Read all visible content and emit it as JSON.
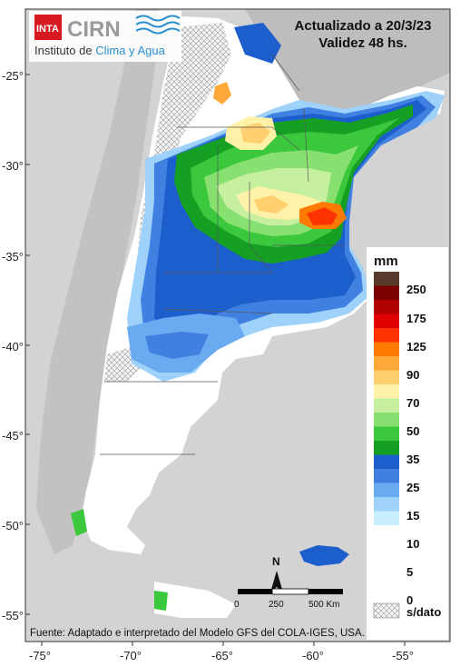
{
  "header": {
    "logo_inta": "INTA",
    "logo_cirn": "CIRN",
    "institute_prefix": "Instituto de ",
    "institute_highlight": "Clima y Agua",
    "updated": "Actualizado a 20/3/23",
    "validity": "Validez 48 hs."
  },
  "legend": {
    "unit": "mm",
    "ticks": [
      "250",
      "175",
      "125",
      "90",
      "70",
      "50",
      "35",
      "25",
      "15",
      "10",
      "5",
      "0"
    ],
    "colors": [
      "#5a3a2a",
      "#7a0000",
      "#b00000",
      "#e00000",
      "#ff3300",
      "#ff7a00",
      "#ffa83a",
      "#ffcf70",
      "#fff2a8",
      "#c6f0a0",
      "#88e070",
      "#3cc83c",
      "#16a023",
      "#1c5ecc",
      "#3f80e0",
      "#6aaaf0",
      "#9ed2fb",
      "#c8eefd",
      "#ffffff"
    ],
    "no_data": "s/dato"
  },
  "scale": {
    "labels": [
      "0",
      "250",
      "500 Km"
    ]
  },
  "north_label": "N",
  "axes": {
    "lat_labels": [
      "-25°",
      "-30°",
      "-35°",
      "-40°",
      "-45°",
      "-50°",
      "-55°"
    ],
    "lon_labels": [
      "-75°",
      "-70°",
      "-65°",
      "-60°",
      "-55°"
    ]
  },
  "footer": "Fuente: Adaptado e interpretado del Modelo GFS del COLA-IGES, USA."
}
